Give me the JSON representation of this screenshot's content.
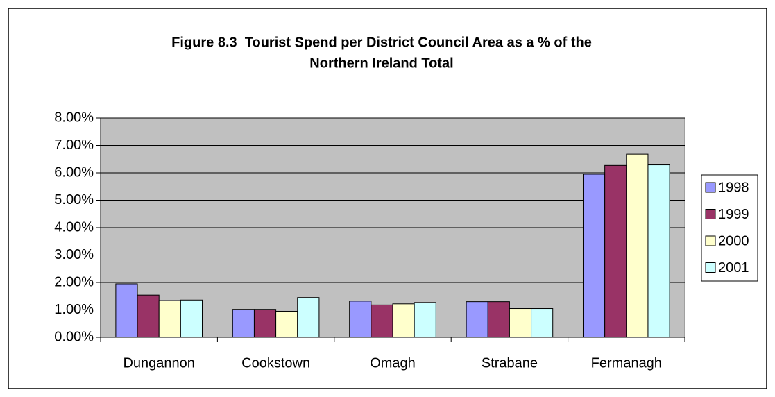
{
  "chart_data": {
    "type": "bar",
    "title": [
      "Figure 8.3  Tourist Spend per District Council Area as a % of the",
      "Northern Ireland Total"
    ],
    "categories": [
      "Dungannon",
      "Cookstown",
      "Omagh",
      "Strabane",
      "Fermanagh"
    ],
    "series": [
      {
        "name": "1998",
        "color": "#9999ff",
        "values": [
          1.95,
          1.02,
          1.32,
          1.3,
          5.95
        ]
      },
      {
        "name": "1999",
        "color": "#993366",
        "values": [
          1.54,
          1.02,
          1.18,
          1.3,
          6.27
        ]
      },
      {
        "name": "2000",
        "color": "#ffffcc",
        "values": [
          1.34,
          0.95,
          1.22,
          1.05,
          6.68
        ]
      },
      {
        "name": "2001",
        "color": "#ccffff",
        "values": [
          1.36,
          1.45,
          1.27,
          1.05,
          6.29
        ]
      }
    ],
    "ylim": [
      0,
      8
    ],
    "yticks": [
      {
        "value": 0,
        "label": "0.00%"
      },
      {
        "value": 1,
        "label": "1.00%"
      },
      {
        "value": 2,
        "label": "2.00%"
      },
      {
        "value": 3,
        "label": "3.00%"
      },
      {
        "value": 4,
        "label": "4.00%"
      },
      {
        "value": 5,
        "label": "5.00%"
      },
      {
        "value": 6,
        "label": "6.00%"
      },
      {
        "value": 7,
        "label": "7.00%"
      },
      {
        "value": 8,
        "label": "8.00%"
      }
    ],
    "grid": true,
    "legend": "right"
  }
}
